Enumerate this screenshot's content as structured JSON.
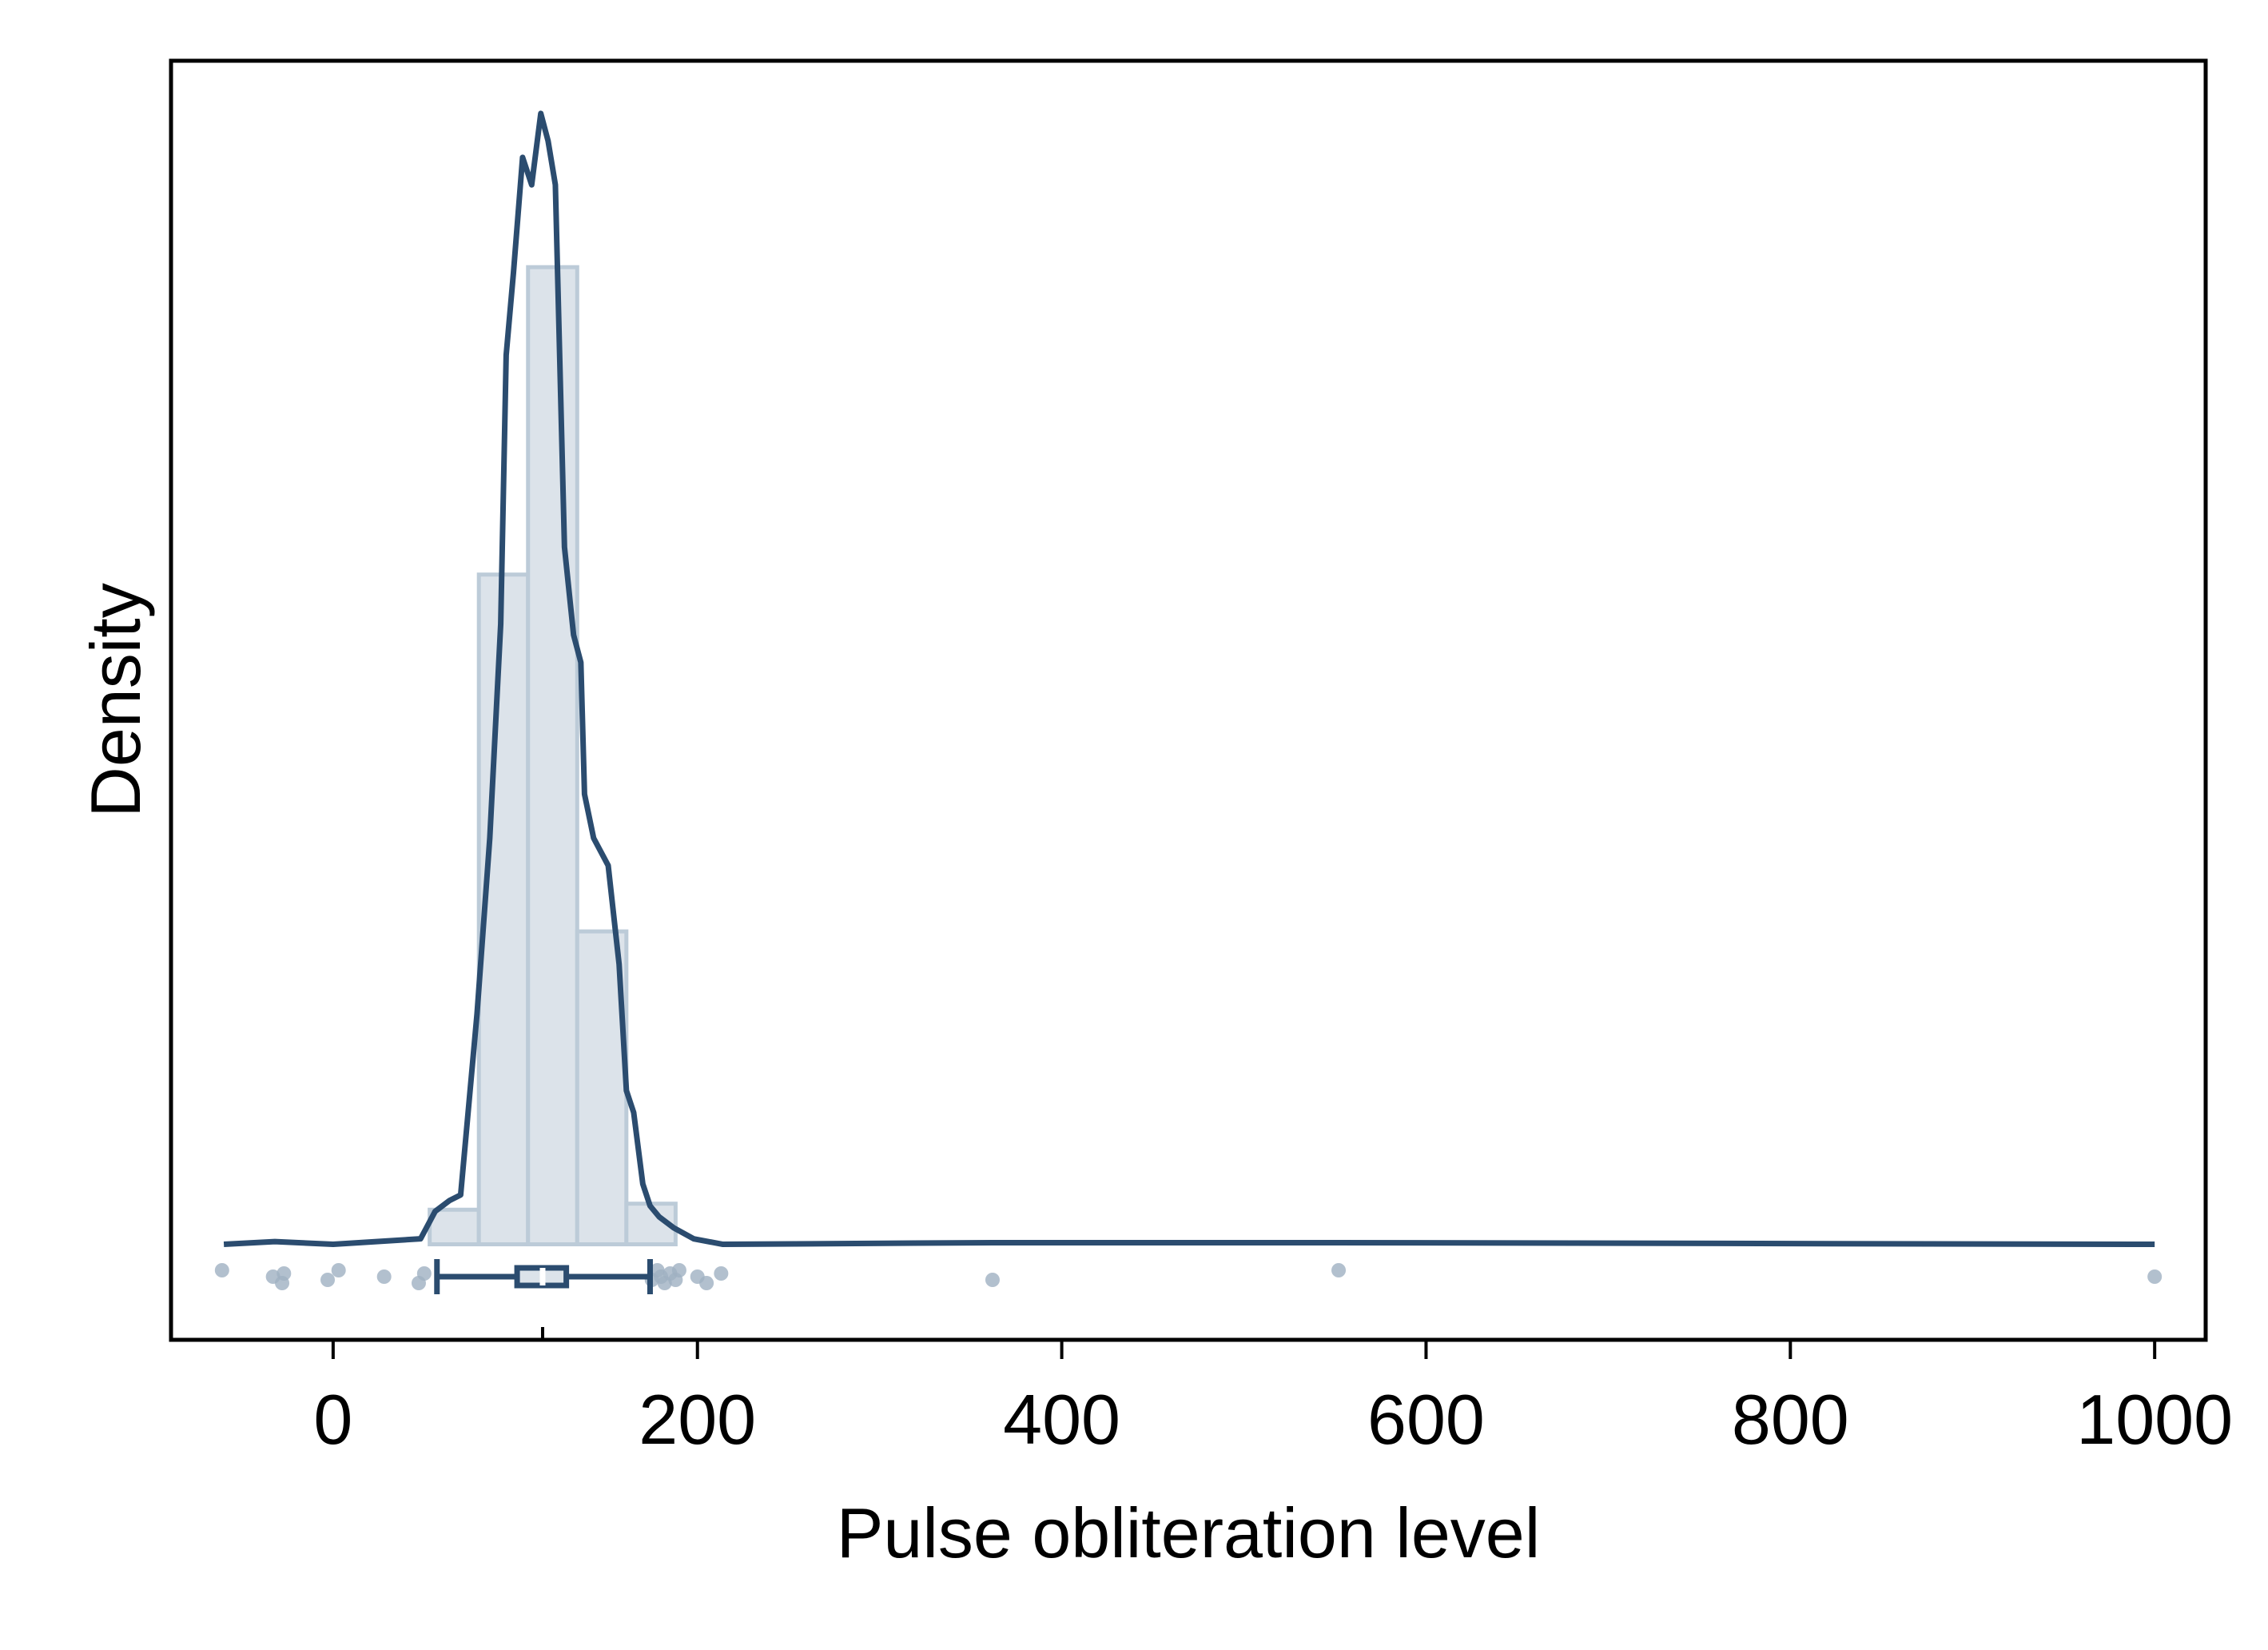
{
  "chart_data": {
    "type": "histogram",
    "x_label": "Pulse obliteration level",
    "y_label": "Density",
    "bins": [
      53,
      80,
      107,
      134,
      161,
      188
    ],
    "values": [
      0.00063,
      0.0122,
      0.0178,
      0.0057,
      0.00074
    ],
    "bar_color": "#dce3ea",
    "bar_edge_color": "#bccbd8",
    "density": {
      "color": "#2b4c6f",
      "x": [
        -60,
        -32,
        0,
        48,
        56,
        64,
        70,
        79,
        86,
        92,
        95,
        99,
        104,
        109,
        114,
        118,
        122,
        127,
        132,
        136,
        138,
        143,
        151,
        157,
        161,
        165,
        170,
        174,
        179,
        187,
        198,
        214,
        362,
        552,
        1000
      ],
      "y": [
        0,
        5e-05,
        0,
        0.0001,
        0.0006,
        0.0008,
        0.0009,
        0.0042,
        0.0074,
        0.0113,
        0.0162,
        0.0177,
        0.0198,
        0.0193,
        0.0206,
        0.0201,
        0.0193,
        0.0127,
        0.0111,
        0.0106,
        0.0082,
        0.0074,
        0.0069,
        0.0051,
        0.0028,
        0.0024,
        0.0011,
        0.0007,
        0.0005,
        0.0003,
        0.0001,
        0,
        3e-05,
        3e-05,
        0
      ]
    },
    "box": {
      "color": "#2b4c6f",
      "whisker_low": 57,
      "q1": 101,
      "median": 115,
      "q3": 128,
      "whisker_high": 174
    },
    "points": {
      "color": "#9fb0c2",
      "x": [
        -61,
        -33,
        -28,
        -27,
        -3,
        3,
        28,
        47,
        50,
        175,
        178,
        180,
        182,
        185,
        188,
        190,
        200,
        205,
        213,
        362,
        552,
        1000
      ]
    },
    "xlim": [
      -89,
      1028
    ],
    "xticks": [
      0,
      200,
      400,
      600,
      800,
      1000
    ],
    "ylim": [
      -0.00174,
      0.02156
    ],
    "grid": false
  }
}
